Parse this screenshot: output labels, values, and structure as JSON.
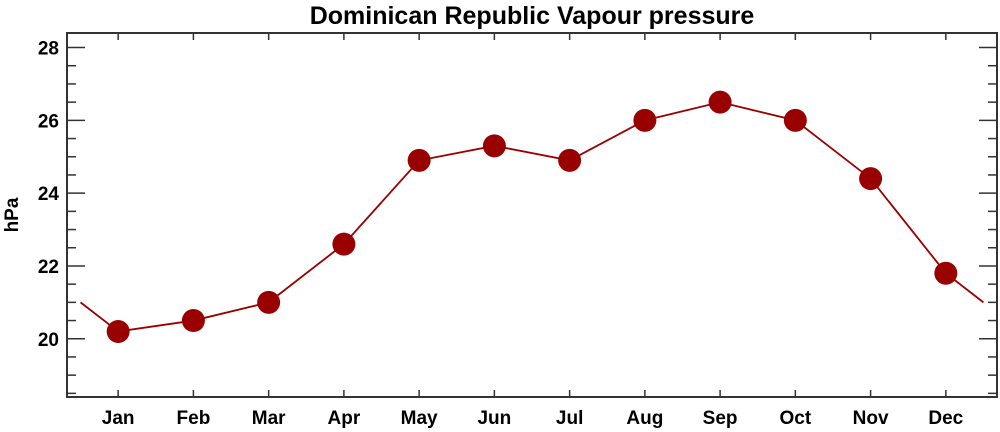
{
  "chart_data": {
    "type": "line",
    "title": "Dominican Republic Vapour pressure",
    "xlabel": "",
    "ylabel": "hPa",
    "categories": [
      "Jan",
      "Feb",
      "Mar",
      "Apr",
      "May",
      "Jun",
      "Jul",
      "Aug",
      "Sep",
      "Oct",
      "Nov",
      "Dec"
    ],
    "series": [
      {
        "name": "Vapour pressure",
        "values": [
          20.2,
          20.5,
          21.0,
          22.6,
          24.9,
          25.3,
          24.9,
          26.0,
          26.5,
          26.0,
          24.4,
          21.8
        ],
        "color": "#990000"
      }
    ],
    "wrap_endpoints": {
      "start_value": 21.0,
      "end_value": 21.0
    },
    "ylim": [
      18.4,
      28.4
    ],
    "xlim": [
      0.32,
      12.68
    ],
    "yticks": [
      20,
      22,
      24,
      26,
      28
    ],
    "yminor_step": 0.5,
    "grid": false,
    "legend": "none"
  }
}
